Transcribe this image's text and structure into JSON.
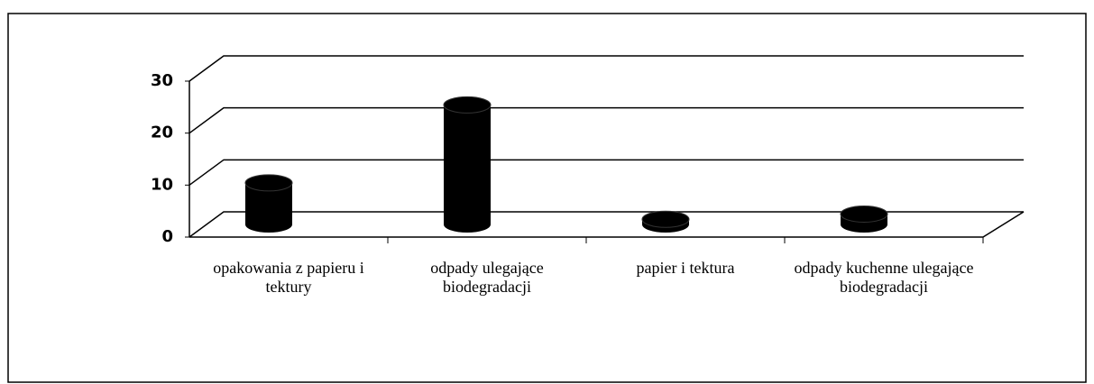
{
  "chart_data": {
    "type": "bar3d",
    "categories": [
      "opakowania z papieru i tektury",
      "odpady ulegające biodegradacji",
      "papier i tektura",
      "odpady kuchenne ulegające biodegradacji"
    ],
    "values": [
      8,
      23,
      1,
      2
    ],
    "color": "#000000",
    "ylim": [
      0,
      30
    ],
    "yticks": [
      0,
      10,
      20,
      30
    ],
    "grid": true
  }
}
